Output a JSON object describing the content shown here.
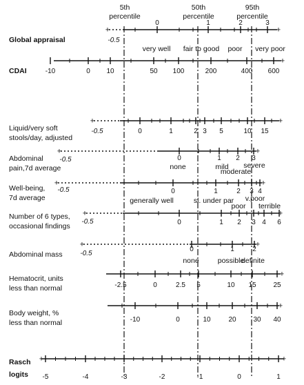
{
  "percentiles": [
    {
      "top": "5th",
      "bottom": "percentile"
    },
    {
      "top": "50th",
      "bottom": "percentile"
    },
    {
      "top": "95th",
      "bottom": "percentile"
    }
  ],
  "rows": [
    {
      "id": "global-appraisal",
      "label": [
        "Global appraisal"
      ],
      "bold": true,
      "start": "-0.5",
      "ticks": [
        "0",
        "1",
        "2",
        "3"
      ],
      "cats": [
        "very well",
        "fair to good",
        "poor",
        "very poor"
      ]
    },
    {
      "id": "cdai",
      "label": [
        "CDAI"
      ],
      "bold": true,
      "ticks": [
        "-10",
        "0",
        "10",
        "50",
        "100",
        "200",
        "400",
        "600"
      ]
    },
    {
      "id": "liquid-stools",
      "label": [
        "Liquid/very soft",
        "stools/day, adjusted"
      ],
      "start": "-0.5",
      "ticks": [
        "0",
        "1",
        "2",
        "3",
        "5",
        "10",
        "15"
      ]
    },
    {
      "id": "abdominal-pain",
      "label": [
        "Abdominal",
        "pain,7d average"
      ],
      "start": "-0.5",
      "ticks": [
        "0",
        "1",
        "2",
        "3"
      ],
      "cats": [
        "none",
        "mild",
        "moderate",
        "severe"
      ]
    },
    {
      "id": "well-being",
      "label": [
        "Well-being,",
        "7d average"
      ],
      "start": "-0.5",
      "ticks": [
        "0",
        "1",
        "2",
        "3",
        "4"
      ],
      "cats": [
        "generally well",
        "sl. under par",
        "poor",
        "v.poor",
        "terrible"
      ]
    },
    {
      "id": "occasional-findings",
      "label": [
        "Number of 6 types,",
        "occasional findings"
      ],
      "start": "-0.5",
      "ticks": [
        "0",
        "1",
        "2",
        "3",
        "4",
        "6"
      ]
    },
    {
      "id": "abdominal-mass",
      "label": [
        "Abdominal mass"
      ],
      "start": "-0.5",
      "ticks": [
        "0",
        "1",
        "2"
      ],
      "cats": [
        "none",
        "possible",
        "definite"
      ]
    },
    {
      "id": "hematocrit",
      "label": [
        "Hematocrit, units",
        "less than normal"
      ],
      "ticks": [
        "-2.5",
        "0",
        "2.5",
        "5",
        "10",
        "15",
        "25"
      ]
    },
    {
      "id": "body-weight",
      "label": [
        "Body weight, %",
        "less than normal"
      ],
      "ticks": [
        "-10",
        "0",
        "10",
        "20",
        "30",
        "40"
      ]
    }
  ],
  "rasch": {
    "label": [
      "Rasch",
      "logits"
    ],
    "ticks": [
      "-5",
      "-4",
      "-3",
      "-2",
      "-1",
      "0",
      "1"
    ]
  }
}
